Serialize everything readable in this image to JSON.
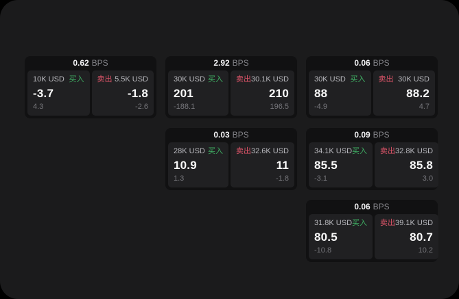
{
  "shared": {
    "bps_unit": "BPS",
    "buy_label": "买入",
    "sell_label": "卖出"
  },
  "colors": {
    "screen_bg": "#1b1b1c",
    "card_bg": "#111112",
    "panel_bg": "#202022",
    "buy_green": "#3fae63",
    "sell_red": "#dc5468",
    "main_value": "#fafafa",
    "muted_text": "#76767b",
    "amount_text": "#b9b9be"
  },
  "cards": [
    {
      "bps": "0.62",
      "buy": {
        "amount": "10K USD",
        "main": "-3.7",
        "sub": "4.3"
      },
      "sell": {
        "amount": "5.5K USD",
        "main": "-1.8",
        "sub": "-2.6"
      }
    },
    {
      "bps": "2.92",
      "buy": {
        "amount": "30K USD",
        "main": "201",
        "sub": "-188.1"
      },
      "sell": {
        "amount": "30.1K USD",
        "main": "210",
        "sub": "196.5"
      }
    },
    {
      "bps": "0.06",
      "buy": {
        "amount": "30K USD",
        "main": "88",
        "sub": "-4.9"
      },
      "sell": {
        "amount": "30K USD",
        "main": "88.2",
        "sub": "4.7"
      }
    },
    {
      "bps": "0.03",
      "buy": {
        "amount": "28K USD",
        "main": "10.9",
        "sub": "1.3"
      },
      "sell": {
        "amount": "32.6K USD",
        "main": "11",
        "sub": "-1.8"
      }
    },
    {
      "bps": "0.09",
      "buy": {
        "amount": "34.1K USD",
        "main": "85.5",
        "sub": "-3.1"
      },
      "sell": {
        "amount": "32.8K USD",
        "main": "85.8",
        "sub": "3.0"
      }
    },
    {
      "bps": "0.06",
      "buy": {
        "amount": "31.8K USD",
        "main": "80.5",
        "sub": "-10.8"
      },
      "sell": {
        "amount": "39.1K USD",
        "main": "80.7",
        "sub": "10.2"
      }
    }
  ]
}
